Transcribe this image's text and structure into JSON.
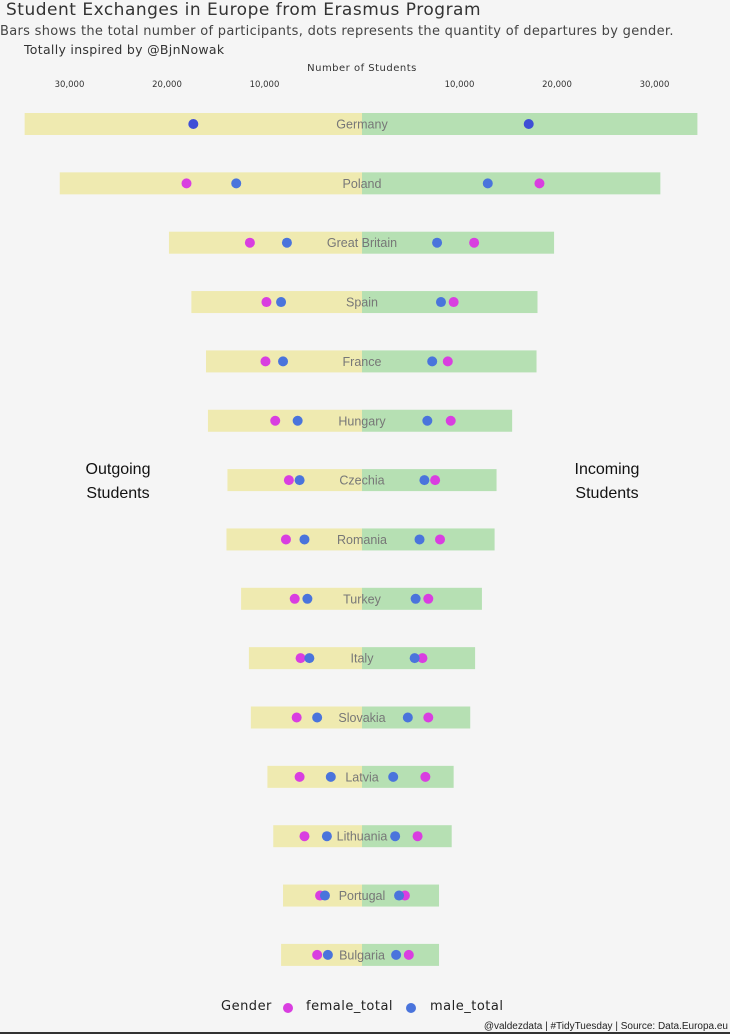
{
  "title": "Student Exchanges in Europe from Erasmus Program",
  "subtitle": "Bars shows the total number of participants, dots represents the quantity of departures by gender.",
  "inspired": "Totally inspired by @BjnNowak",
  "side_labels": {
    "left": [
      "Outgoing",
      "Students"
    ],
    "right": [
      "Incoming",
      "Students"
    ]
  },
  "caption": "@valdezdata | #TidyTuesday | Source: Data.Europa.eu",
  "colors": {
    "outgoing_bar": "#efeab0",
    "incoming_bar": "#b6e0b3",
    "female": "#d93ee0",
    "male": "#4a74dc",
    "male_dark": "#3f4fd6"
  },
  "chart_data": {
    "type": "bar",
    "xlabel": "Number of Students",
    "x_ticks_left": [
      "30,000",
      "20,000",
      "10,000"
    ],
    "x_ticks_right": [
      "10,000",
      "20,000",
      "30,000"
    ],
    "tick_values": [
      30000,
      20000,
      10000
    ],
    "legend": {
      "title": "Gender",
      "placement": "bottom",
      "entries": [
        "female_total",
        "male_total"
      ]
    },
    "grid": false,
    "categories": [
      "Germany",
      "Poland",
      "Great Britain",
      "Spain",
      "France",
      "Hungary",
      "Czechia",
      "Romania",
      "Turkey",
      "Italy",
      "Slovakia",
      "Latvia",
      "Lithuania",
      "Portugal",
      "Bulgaria"
    ],
    "series": [
      {
        "name": "Outgoing Students",
        "values": [
          34600,
          31000,
          19800,
          17500,
          16000,
          15800,
          13800,
          13900,
          12400,
          11600,
          11400,
          9700,
          9100,
          8100,
          8300
        ]
      },
      {
        "name": "Incoming Students",
        "values": [
          34400,
          30600,
          19700,
          18000,
          17900,
          15400,
          13800,
          13600,
          12300,
          11600,
          11100,
          9400,
          9200,
          7900,
          7900
        ]
      },
      {
        "name": "female_total",
        "values": [
          {
            "out": null,
            "in": null
          },
          {
            "out": 18000,
            "in": 18200
          },
          {
            "out": 11500,
            "in": 11500
          },
          {
            "out": 9800,
            "in": 9400
          },
          {
            "out": 9900,
            "in": 8800
          },
          {
            "out": 8900,
            "in": 9100
          },
          {
            "out": 7500,
            "in": 7500
          },
          {
            "out": 7800,
            "in": 8000
          },
          {
            "out": 6900,
            "in": 6800
          },
          {
            "out": 6300,
            "in": 6200
          },
          {
            "out": 6700,
            "in": 6800
          },
          {
            "out": 6400,
            "in": 6500
          },
          {
            "out": 5900,
            "in": 5700
          },
          {
            "out": 4300,
            "in": 4400
          },
          {
            "out": 4600,
            "in": 4800
          }
        ]
      },
      {
        "name": "male_total",
        "values": [
          {
            "out": 17300,
            "in": 17100
          },
          {
            "out": 12900,
            "in": 12900
          },
          {
            "out": 7700,
            "in": 7700
          },
          {
            "out": 8300,
            "in": 8100
          },
          {
            "out": 8100,
            "in": 7200
          },
          {
            "out": 6600,
            "in": 6700
          },
          {
            "out": 6400,
            "in": 6400
          },
          {
            "out": 5900,
            "in": 5900
          },
          {
            "out": 5600,
            "in": 5500
          },
          {
            "out": 5400,
            "in": 5400
          },
          {
            "out": 4600,
            "in": 4700
          },
          {
            "out": 3200,
            "in": 3200
          },
          {
            "out": 3600,
            "in": 3400
          },
          {
            "out": 3800,
            "in": 3800
          },
          {
            "out": 3500,
            "in": 3500
          }
        ]
      }
    ]
  }
}
